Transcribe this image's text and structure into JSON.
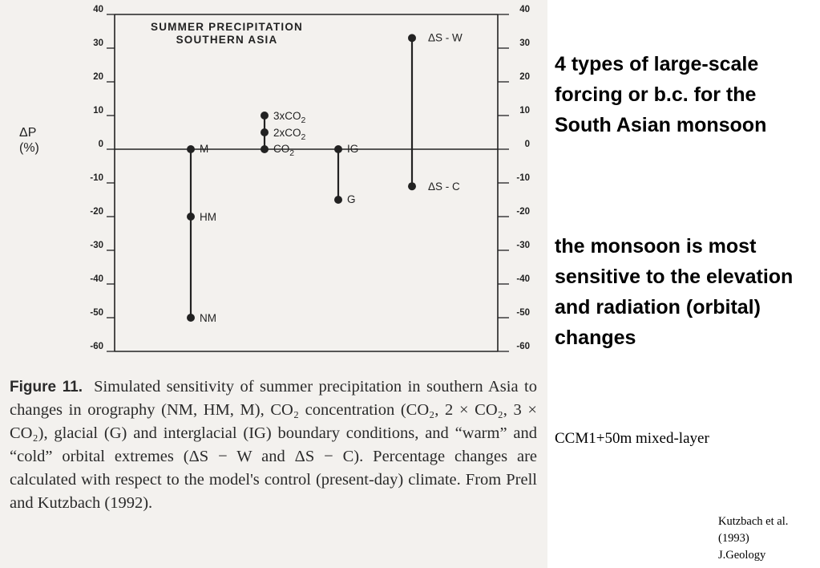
{
  "chart_data": {
    "type": "scatter",
    "title_lines": [
      "SUMMER PRECIPITATION",
      "SOUTHERN ASIA"
    ],
    "ylabel": "ΔP\n(%)",
    "ylim": [
      -60,
      40
    ],
    "yticks": [
      40,
      30,
      20,
      10,
      0,
      -10,
      -20,
      -30,
      -40,
      -50,
      -60
    ],
    "grid": false,
    "groups": [
      {
        "points": [
          {
            "label": "M",
            "value": 0
          },
          {
            "label": "HM",
            "value": -20
          },
          {
            "label": "NM",
            "value": -50
          }
        ]
      },
      {
        "points": [
          {
            "label": "3xCO2",
            "value": 10
          },
          {
            "label": "2xCO2",
            "value": 5
          },
          {
            "label": "CO2",
            "value": 0
          }
        ]
      },
      {
        "points": [
          {
            "label": "IG",
            "value": 0
          },
          {
            "label": "G",
            "value": -15
          }
        ]
      },
      {
        "points": [
          {
            "label": "ΔS - W",
            "value": 33
          },
          {
            "label": "ΔS - C",
            "value": -11
          }
        ]
      }
    ]
  },
  "caption": {
    "label": "Figure 11.",
    "text": "Simulated sensitivity of summer precipitation in southern Asia to changes in orography (NM, HM, M), CO₂ concentration (CO₂, 2 × CO₂, 3 × CO₂), glacial (G) and interglacial (IG) boundary conditions, and “warm” and “cold” orbital extremes (ΔS − W and ΔS − C). Percentage changes are calculated with respect to the model's control (present-day) climate. From Prell and Kutzbach (1992)."
  },
  "notes": {
    "forcing": "4 types of large-scale forcing or b.c. for the South Asian monsoon",
    "sensitivity": "the monsoon is most sensitive to the elevation and radiation (orbital) changes",
    "model": "CCM1+50m mixed-layer"
  },
  "citation": {
    "lines": [
      "Kutzbach et al.",
      "(1993)",
      "J.Geology"
    ]
  }
}
